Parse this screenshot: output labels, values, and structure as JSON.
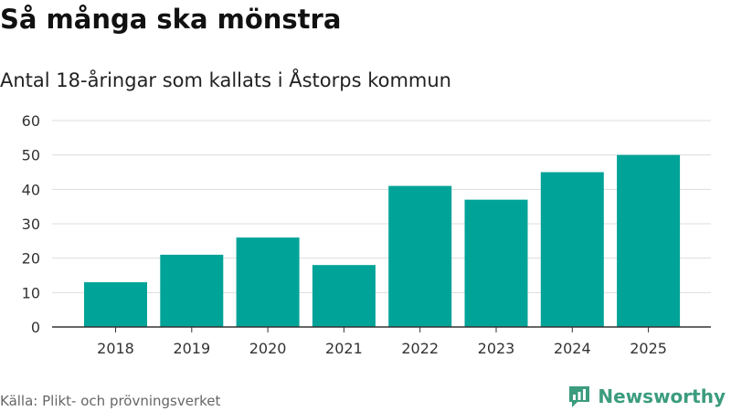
{
  "header": {
    "title": "Så många ska mönstra",
    "subtitle": "Antal 18-åringar som kallats i Åstorps kommun"
  },
  "footer": {
    "source": "Källa: Plikt- och prövningsverket",
    "brand": "Newsworthy"
  },
  "colors": {
    "bar": "#00a398",
    "grid": "#dddddd",
    "axis": "#333333",
    "brand": "#3b9c7e"
  },
  "chart_data": {
    "type": "bar",
    "categories": [
      "2018",
      "2019",
      "2020",
      "2021",
      "2022",
      "2023",
      "2024",
      "2025"
    ],
    "values": [
      13,
      21,
      26,
      18,
      41,
      37,
      45,
      50
    ],
    "title": "Så många ska mönstra",
    "subtitle": "Antal 18-åringar som kallats i Åstorps kommun",
    "xlabel": "",
    "ylabel": "",
    "ylim": [
      0,
      60
    ],
    "yticks": [
      0,
      10,
      20,
      30,
      40,
      50,
      60
    ],
    "grid": true,
    "legend": "none"
  }
}
